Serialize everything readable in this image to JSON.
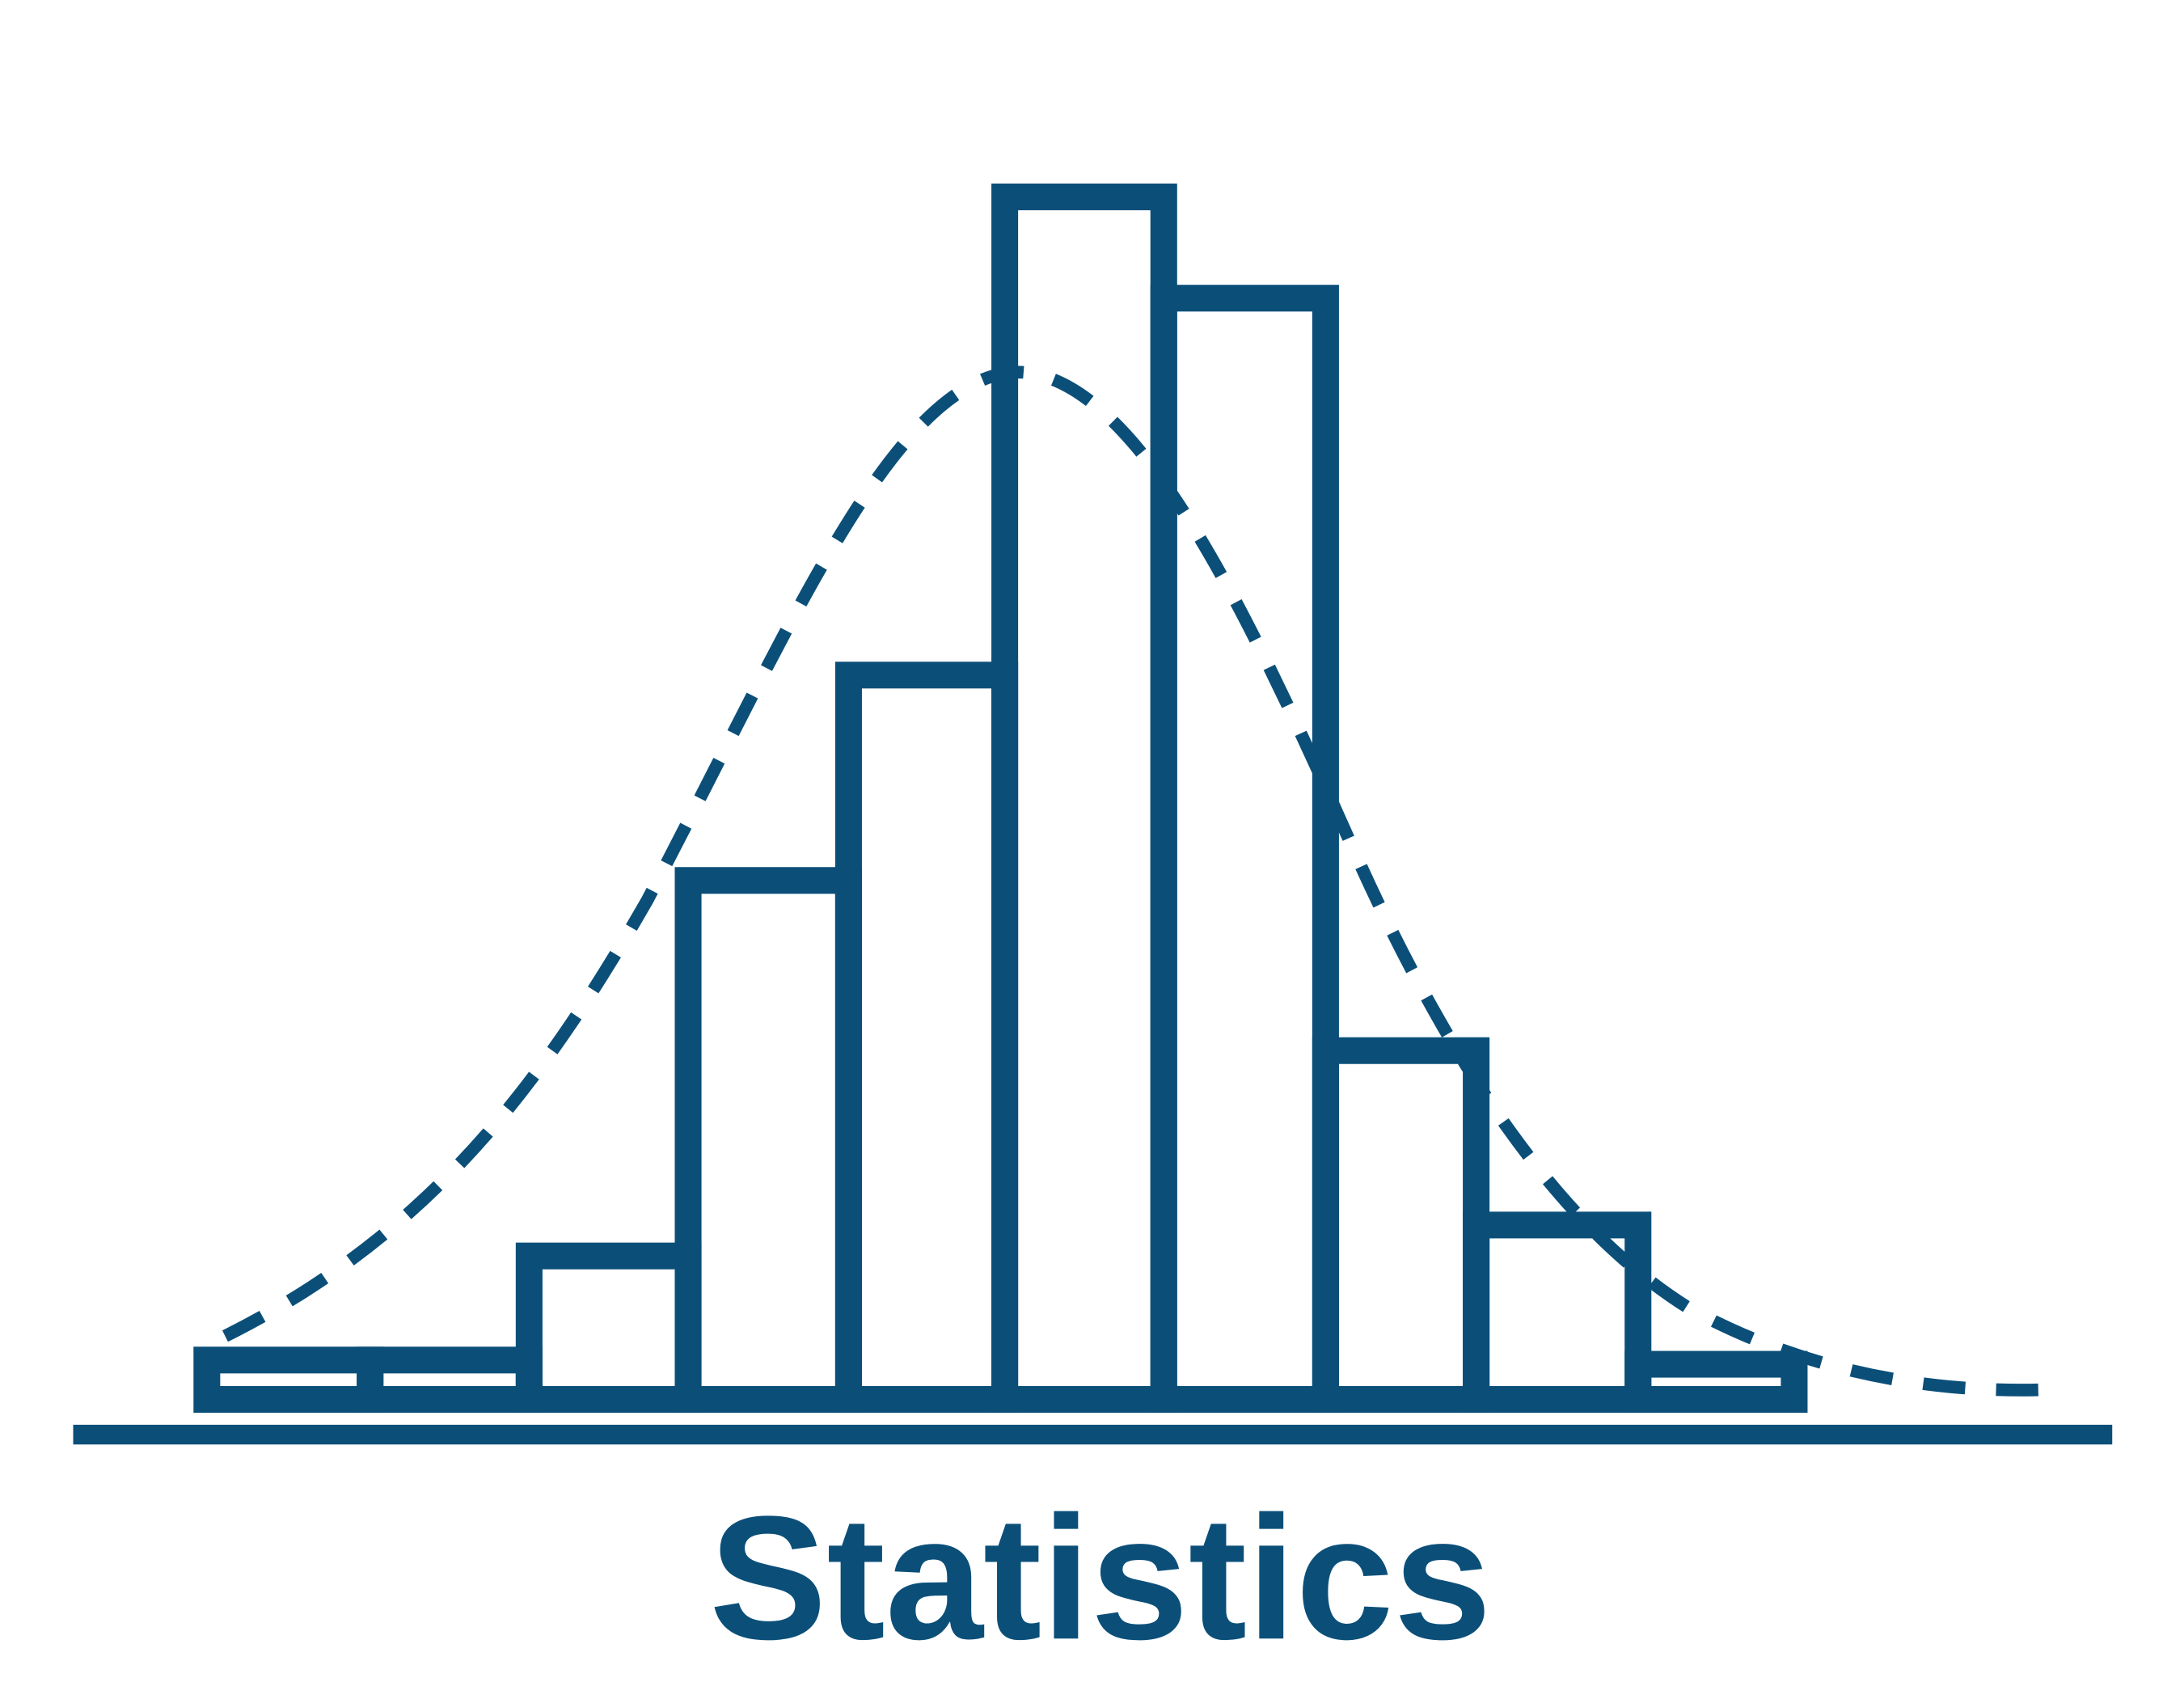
{
  "label": "Statistics"
}
